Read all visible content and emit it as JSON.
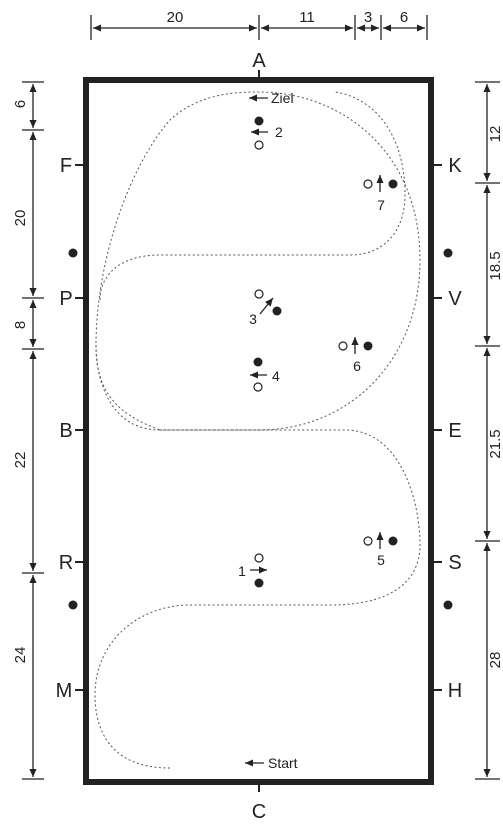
{
  "arena_letters": {
    "top": "A",
    "bottom": "C",
    "left": [
      "F",
      "P",
      "B",
      "R",
      "M"
    ],
    "right": [
      "K",
      "V",
      "E",
      "S",
      "H"
    ]
  },
  "dimensions": {
    "top": [
      "20",
      "11",
      "3",
      "6"
    ],
    "left": [
      "6",
      "20",
      "8",
      "22",
      "24"
    ],
    "right": [
      "12",
      "18.5",
      "21.5",
      "28"
    ]
  },
  "labels": {
    "start": "Start",
    "finish": "Ziel"
  },
  "markers": [
    "1",
    "2",
    "3",
    "4",
    "5",
    "6",
    "7"
  ]
}
